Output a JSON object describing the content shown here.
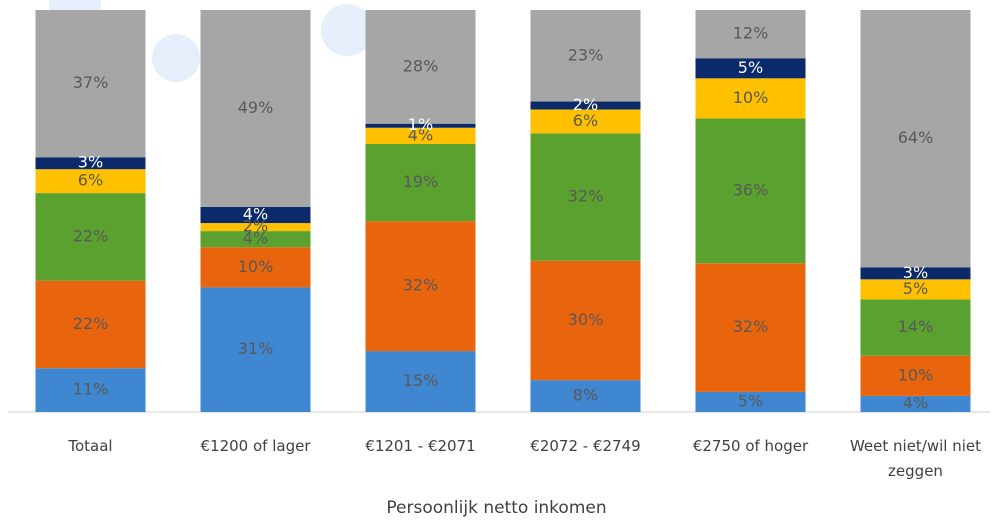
{
  "chart_data": {
    "type": "stacked_bar",
    "x_label": "Persoonlijk netto inkomen",
    "categories": [
      "Totaal",
      "€1200 of lager",
      "€1201 - €2071",
      "€2072 - €2749",
      "€2750 of hoger",
      "Weet niet/wil niet zeggen"
    ],
    "series": [
      {
        "color": "#3f87d0",
        "label_color": "#595959",
        "values": [
          11,
          31,
          15,
          8,
          5,
          4
        ],
        "value_labels": [
          "11%",
          "31%",
          "15%",
          "8%",
          "5%",
          "4%"
        ]
      },
      {
        "color": "#e8650e",
        "label_color": "#595959",
        "values": [
          22,
          10,
          32,
          30,
          32,
          10
        ],
        "value_labels": [
          "22%",
          "10%",
          "32%",
          "30%",
          "32%",
          "10%"
        ]
      },
      {
        "color": "#5ba12f",
        "label_color": "#595959",
        "values": [
          22,
          4,
          19,
          32,
          36,
          14
        ],
        "value_labels": [
          "22%",
          "4%",
          "19%",
          "32%",
          "36%",
          "14%"
        ]
      },
      {
        "color": "#ffc000",
        "label_color": "#595959",
        "values": [
          6,
          2,
          4,
          6,
          10,
          5
        ],
        "value_labels": [
          "6%",
          "2%",
          "4%",
          "6%",
          "10%",
          "5%"
        ]
      },
      {
        "color": "#0b2a6b",
        "label_color": "#ffffff",
        "values": [
          3,
          4,
          1,
          2,
          5,
          3
        ],
        "value_labels": [
          "3%",
          "4%",
          "1%",
          "2%",
          "5%",
          "3%"
        ]
      },
      {
        "color": "#a6a6a6",
        "label_color": "#595959",
        "values": [
          37,
          49,
          28,
          23,
          12,
          64
        ],
        "value_labels": [
          "37%",
          "49%",
          "28%",
          "23%",
          "12%",
          "64%"
        ]
      }
    ]
  }
}
